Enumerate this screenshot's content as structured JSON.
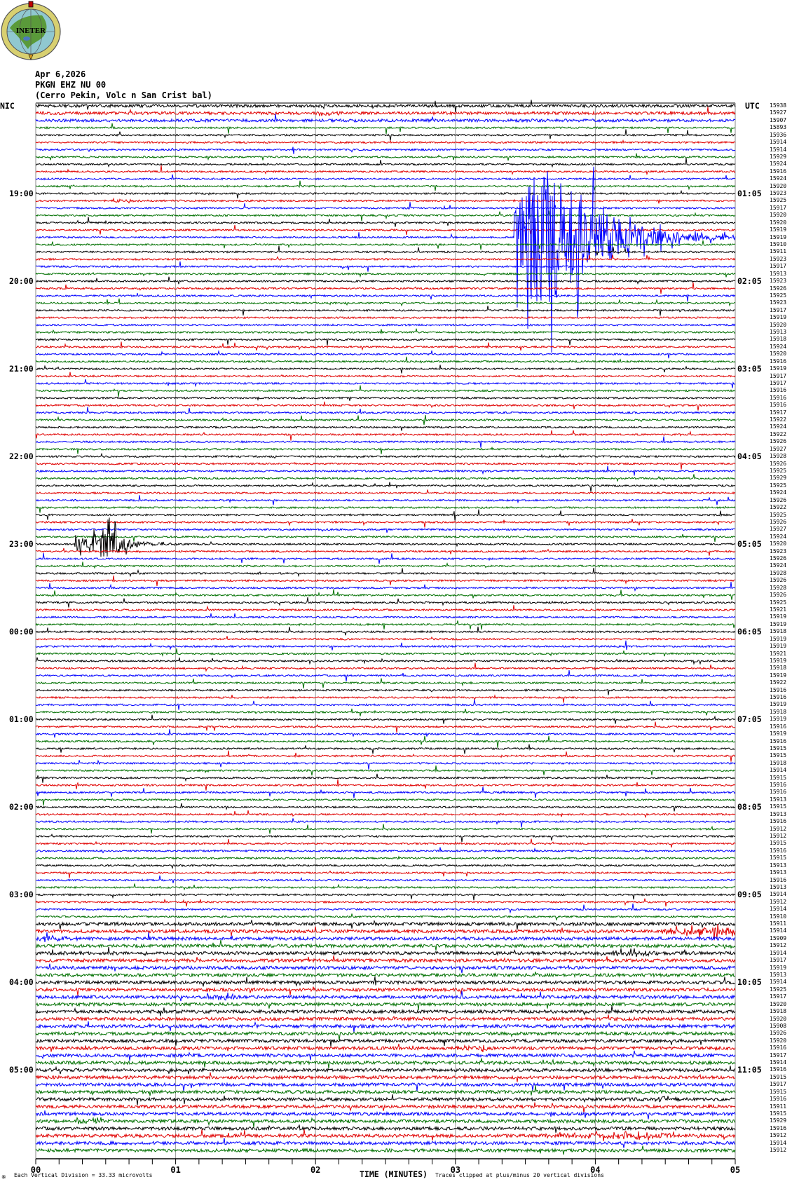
{
  "logo": {
    "text": "INETER"
  },
  "header": {
    "date": "Apr 6,2026",
    "channel": "PKGN EHZ NU 00",
    "station": "(Cerro Pekin, Volc n San Crist bal)"
  },
  "left_timezone": "NIC",
  "right_timezone": "UTC",
  "footer": {
    "vertical_division": "Each Vertical Division =   33.33 microvolts",
    "xlabel": "TIME (MINUTES)",
    "clip_note": "Traces clipped at plus/minus 20 vertical divisions"
  },
  "chart_data": {
    "type": "line",
    "subtype": "helicorder",
    "xlabel": "TIME (MINUTES)",
    "xlim": [
      0,
      5
    ],
    "x_tick_labels": [
      "00",
      "01",
      "02",
      "03",
      "04",
      "05"
    ],
    "minor_tick_seconds": 10,
    "minutes_per_row": 5,
    "clip_divisions": 20,
    "microvolts_per_division": 33.33,
    "trace_colors": [
      "#000000",
      "#e00000",
      "#0000ff",
      "#007000"
    ],
    "grid": true,
    "left_hour_labels": [
      {
        "row": 13,
        "label": "19:00"
      },
      {
        "row": 25,
        "label": "20:00"
      },
      {
        "row": 37,
        "label": "21:00"
      },
      {
        "row": 49,
        "label": "22:00"
      },
      {
        "row": 61,
        "label": "23:00"
      },
      {
        "row": 73,
        "label": "00:00"
      },
      {
        "row": 85,
        "label": "01:00"
      },
      {
        "row": 97,
        "label": "02:00"
      },
      {
        "row": 109,
        "label": "03:00"
      },
      {
        "row": 121,
        "label": "04:00"
      },
      {
        "row": 133,
        "label": "05:00"
      }
    ],
    "right_hour_labels": [
      {
        "row": 13,
        "label": "01:05"
      },
      {
        "row": 25,
        "label": "02:05"
      },
      {
        "row": 37,
        "label": "03:05"
      },
      {
        "row": 49,
        "label": "04:05"
      },
      {
        "row": 61,
        "label": "05:05"
      },
      {
        "row": 73,
        "label": "06:05"
      },
      {
        "row": 85,
        "label": "07:05"
      },
      {
        "row": 97,
        "label": "08:05"
      },
      {
        "row": 109,
        "label": "09:05"
      },
      {
        "row": 121,
        "label": "10:05"
      },
      {
        "row": 133,
        "label": "11:05"
      }
    ],
    "row_values": [
      "15938",
      "15927",
      "15907",
      "15893",
      "15936",
      "15914",
      "15914",
      "15929",
      "15924",
      "15916",
      "15924",
      "15920",
      "15923",
      "15925",
      "15917",
      "15920",
      "15920",
      "15919",
      "15919",
      "15910",
      "15911",
      "15923",
      "15917",
      "15913",
      "15923",
      "15926",
      "15925",
      "15923",
      "15917",
      "15919",
      "15920",
      "15913",
      "15918",
      "15924",
      "15920",
      "15916",
      "15919",
      "15917",
      "15917",
      "15916",
      "15916",
      "15916",
      "15917",
      "15922",
      "15924",
      "15922",
      "15926",
      "15927",
      "15928",
      "15926",
      "15925",
      "15929",
      "15925",
      "15924",
      "15926",
      "15922",
      "15925",
      "15926",
      "15927",
      "15924",
      "15920",
      "15923",
      "15926",
      "15924",
      "15928",
      "15926",
      "15928",
      "15926",
      "15925",
      "15921",
      "15919",
      "15919",
      "15918",
      "15919",
      "15919",
      "15921",
      "15919",
      "15918",
      "15919",
      "15922",
      "15916",
      "15916",
      "15919",
      "15918",
      "15919",
      "15916",
      "15919",
      "15916",
      "15915",
      "15915",
      "15918",
      "15914",
      "15915",
      "15916",
      "15916",
      "15913",
      "15915",
      "15913",
      "15916",
      "15912",
      "15912",
      "15915",
      "15916",
      "15915",
      "15913",
      "15913",
      "15916",
      "15913",
      "15914",
      "15912",
      "15914",
      "15910",
      "15911",
      "15914",
      "15909",
      "15912",
      "15914",
      "15917",
      "15919",
      "15913",
      "15914",
      "15925",
      "15917",
      "15920",
      "15918",
      "15920",
      "15908",
      "15926",
      "15920",
      "15916",
      "15917",
      "15914",
      "15916",
      "15915",
      "15917",
      "15915",
      "15916",
      "15911",
      "15915",
      "15929",
      "15916",
      "15912",
      "15914",
      "15912"
    ],
    "events": [
      {
        "row": 19,
        "start_min": 3.42,
        "peak_min": 3.68,
        "end_min": 4.8,
        "peak_divisions": 20
      },
      {
        "row": 61,
        "start_min": 0.28,
        "peak_min": 0.52,
        "end_min": 1.0,
        "peak_divisions": 3.4
      },
      {
        "row": 2,
        "start_min": 2.0,
        "peak_min": 2.05,
        "end_min": 2.25,
        "peak_divisions": 1.0
      },
      {
        "row": 14,
        "start_min": 0.52,
        "peak_min": 0.62,
        "end_min": 0.82,
        "peak_divisions": 0.5
      },
      {
        "row": 114,
        "start_min": 4.45,
        "peak_min": 5.0,
        "end_min": 5.2,
        "peak_divisions": 1.0
      },
      {
        "row": 115,
        "start_min": 0.0,
        "peak_min": 0.05,
        "end_min": 0.45,
        "peak_divisions": 0.8
      },
      {
        "row": 117,
        "start_min": 4.03,
        "peak_min": 4.3,
        "end_min": 4.65,
        "peak_divisions": 0.6
      },
      {
        "row": 123,
        "start_min": 1.2,
        "peak_min": 1.36,
        "end_min": 1.55,
        "peak_divisions": 0.6
      },
      {
        "row": 130,
        "start_min": 3.0,
        "peak_min": 3.2,
        "end_min": 3.3,
        "peak_divisions": 0.7
      },
      {
        "row": 137,
        "start_min": 4.4,
        "peak_min": 4.5,
        "end_min": 4.7,
        "peak_divisions": 0.4
      },
      {
        "row": 140,
        "start_min": 0.3,
        "peak_min": 0.45,
        "end_min": 0.6,
        "peak_divisions": 0.5
      },
      {
        "row": 142,
        "start_min": 3.6,
        "peak_min": 4.5,
        "end_min": 5.0,
        "peak_divisions": 0.6
      }
    ]
  }
}
